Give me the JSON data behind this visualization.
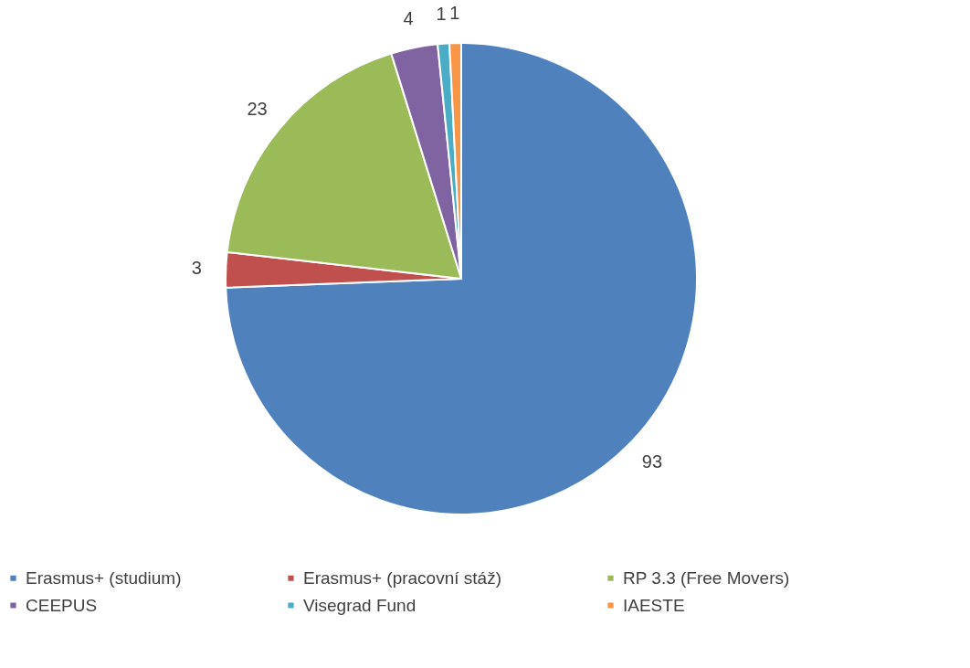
{
  "chart_data": {
    "type": "pie",
    "categories": [
      "Erasmus+ (studium)",
      "Erasmus+ (pracovní stáž)",
      "RP 3.3 (Free Movers)",
      "CEEPUS",
      "Visegrad Fund",
      "IAESTE"
    ],
    "values": [
      93,
      3,
      23,
      4,
      1,
      1
    ],
    "colors": [
      "#4f81bd",
      "#c0504d",
      "#9bbb59",
      "#8064a2",
      "#4bacc6",
      "#f79646"
    ],
    "data_labels": true,
    "legend": "bottom"
  }
}
